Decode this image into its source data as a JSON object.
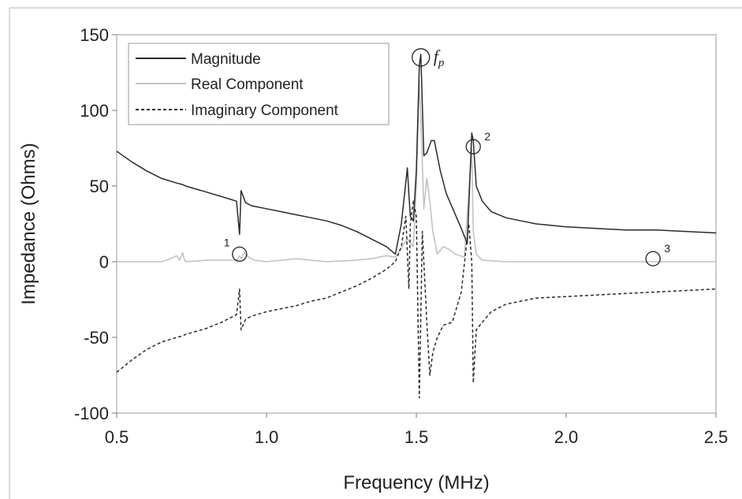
{
  "chart_data": {
    "type": "line",
    "xlabel": "Frequency (MHz)",
    "ylabel": "Impedance (Ohms)",
    "xlim": [
      0.5,
      2.5
    ],
    "ylim": [
      -100,
      150
    ],
    "xticks": [
      "0.5",
      "1.0",
      "1.5",
      "2.0",
      "2.5"
    ],
    "yticks": [
      "-100",
      "-50",
      "0",
      "50",
      "100",
      "150"
    ],
    "xtick_values": [
      0.5,
      1.0,
      1.5,
      2.0,
      2.5
    ],
    "ytick_values": [
      -100,
      -50,
      0,
      50,
      100,
      150
    ],
    "grid": false,
    "legend_position": "top-left",
    "series": [
      {
        "name": "Magnitude",
        "color": "#2a2a2a",
        "style": "solid",
        "x": [
          0.5,
          0.55,
          0.6,
          0.65,
          0.7,
          0.72,
          0.73,
          0.8,
          0.85,
          0.9,
          0.91,
          0.915,
          0.93,
          0.95,
          1.0,
          1.05,
          1.1,
          1.15,
          1.2,
          1.25,
          1.3,
          1.35,
          1.4,
          1.43,
          1.45,
          1.47,
          1.475,
          1.48,
          1.49,
          1.5,
          1.51,
          1.515,
          1.525,
          1.535,
          1.55,
          1.56,
          1.58,
          1.6,
          1.65,
          1.67,
          1.685,
          1.69,
          1.7,
          1.72,
          1.75,
          1.8,
          1.85,
          1.9,
          2.0,
          2.1,
          2.2,
          2.3,
          2.4,
          2.5
        ],
        "y": [
          73,
          66,
          60,
          55,
          52,
          51,
          50,
          46,
          43,
          40,
          18,
          47,
          39,
          37,
          35,
          33,
          31,
          29,
          27,
          24,
          20,
          15,
          10,
          5,
          25,
          62,
          45,
          30,
          27,
          60,
          130,
          137,
          70,
          72,
          80,
          80,
          60,
          45,
          22,
          12,
          85,
          80,
          50,
          40,
          33,
          29,
          27,
          25,
          23,
          22,
          21,
          21,
          20,
          19
        ]
      },
      {
        "name": "Real Component",
        "color": "#c2c2c2",
        "style": "solid",
        "x": [
          0.5,
          0.65,
          0.68,
          0.7,
          0.71,
          0.72,
          0.725,
          0.73,
          0.8,
          0.9,
          0.91,
          0.915,
          0.925,
          0.94,
          0.96,
          1.0,
          1.1,
          1.2,
          1.3,
          1.35,
          1.4,
          1.43,
          1.47,
          1.49,
          1.5,
          1.51,
          1.515,
          1.525,
          1.535,
          1.545,
          1.555,
          1.57,
          1.59,
          1.61,
          1.63,
          1.66,
          1.685,
          1.69,
          1.7,
          1.72,
          1.8,
          2.0,
          2.5
        ],
        "y": [
          0,
          0,
          2,
          4,
          1,
          6,
          2,
          0,
          1,
          1,
          4,
          2,
          6,
          3,
          1,
          0,
          2,
          0,
          1,
          2,
          4,
          3,
          15,
          10,
          50,
          120,
          95,
          35,
          55,
          40,
          20,
          5,
          10,
          8,
          5,
          3,
          75,
          20,
          5,
          1,
          0,
          0,
          0
        ]
      },
      {
        "name": "Imaginary Component",
        "color": "#2a2a2a",
        "style": "dashed",
        "x": [
          0.5,
          0.55,
          0.6,
          0.65,
          0.7,
          0.72,
          0.73,
          0.8,
          0.85,
          0.9,
          0.91,
          0.915,
          0.93,
          0.95,
          1.0,
          1.05,
          1.1,
          1.15,
          1.2,
          1.25,
          1.3,
          1.35,
          1.4,
          1.43,
          1.45,
          1.465,
          1.475,
          1.48,
          1.49,
          1.5,
          1.51,
          1.52,
          1.535,
          1.545,
          1.555,
          1.57,
          1.59,
          1.62,
          1.65,
          1.675,
          1.685,
          1.69,
          1.7,
          1.72,
          1.75,
          1.8,
          1.9,
          2.0,
          2.1,
          2.2,
          2.3,
          2.4,
          2.5
        ],
        "y": [
          -73,
          -65,
          -58,
          -53,
          -50,
          -49,
          -48,
          -44,
          -40,
          -35,
          -18,
          -45,
          -38,
          -36,
          -33,
          -31,
          -29,
          -26,
          -24,
          -20,
          -16,
          -11,
          -5,
          0,
          10,
          30,
          -18,
          25,
          40,
          30,
          -90,
          20,
          -40,
          -75,
          -60,
          -50,
          -42,
          -40,
          -20,
          25,
          0,
          -80,
          -45,
          -40,
          -33,
          -28,
          -24,
          -23,
          -22,
          -21,
          -20,
          -19,
          -18
        ]
      }
    ],
    "annotations": [
      {
        "label": "1",
        "x": 0.91,
        "y": 5
      },
      {
        "label": "2",
        "x": 1.69,
        "y": 76
      },
      {
        "label": "3",
        "x": 2.29,
        "y": 2
      },
      {
        "label": "f",
        "subscript": "p",
        "x": 1.515,
        "y": 135
      }
    ]
  }
}
